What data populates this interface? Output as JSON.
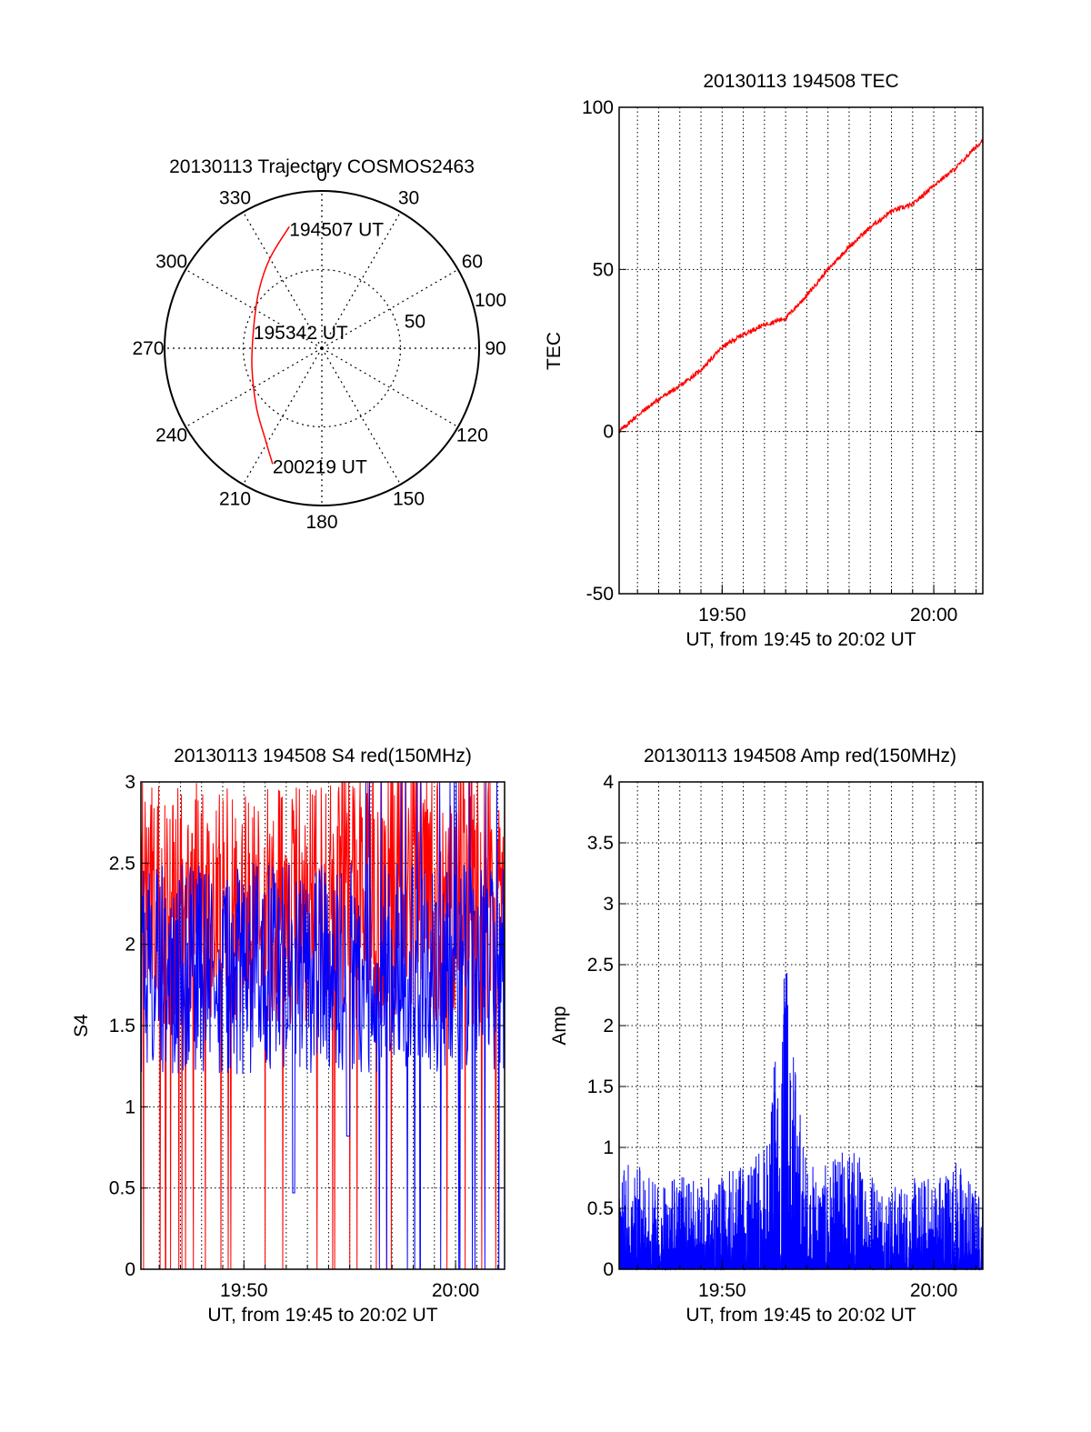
{
  "colors": {
    "background": "#ffffff",
    "axis": "#000000",
    "grid": "#000000",
    "red_series": "#ff0000",
    "blue_series": "#0000ff"
  },
  "chart_data": [
    {
      "type": "polar",
      "title": "20130113 Trajectory COSMOS2463",
      "angle_ticks": [
        "0",
        "30",
        "60",
        "90",
        "120",
        "150",
        "180",
        "210",
        "240",
        "270",
        "300",
        "330"
      ],
      "angle_tick_values": [
        0,
        30,
        60,
        90,
        120,
        150,
        180,
        210,
        240,
        270,
        300,
        330
      ],
      "radial_ticks": [
        "50",
        "100"
      ],
      "radial_tick_values": [
        50,
        100
      ],
      "radial_range": [
        0,
        100
      ],
      "radial_variable": "elevation",
      "grid": true,
      "series": [
        {
          "color": "#ff0000",
          "points": [
            {
              "azimuth": 345,
              "elevation": 10
            },
            {
              "azimuth": 330,
              "elevation": 24
            },
            {
              "azimuth": 312,
              "elevation": 36
            },
            {
              "azimuth": 285,
              "elevation": 45
            },
            {
              "azimuth": 255,
              "elevation": 44
            },
            {
              "azimuth": 228,
              "elevation": 34
            },
            {
              "azimuth": 212,
              "elevation": 22
            },
            {
              "azimuth": 203,
              "elevation": 10
            }
          ]
        }
      ],
      "annotations": [
        {
          "text": "194507 UT",
          "azimuth": 345,
          "elevation": 10
        },
        {
          "text": "195342 UT",
          "azimuth": 285,
          "elevation": 45
        },
        {
          "text": "200219 UT",
          "azimuth": 203,
          "elevation": 10
        }
      ]
    },
    {
      "type": "line",
      "title": "20130113 194508 TEC",
      "xlabel": "UT, from 19:45 to 20:02 UT",
      "ylabel": "TEC",
      "xlim": [
        "19:45:08",
        "20:02:19"
      ],
      "ylim": [
        -50,
        100
      ],
      "xticks": [
        "19:50",
        "20:00"
      ],
      "yticks": [
        "-50",
        "0",
        "50",
        "100"
      ],
      "grid": true,
      "series": [
        {
          "color": "#ff0000",
          "x": [
            "19:45:08",
            "19:46:00",
            "19:47:00",
            "19:48:00",
            "19:49:00",
            "19:50:00",
            "19:51:00",
            "19:52:00",
            "19:53:00",
            "19:54:00",
            "19:55:00",
            "19:56:00",
            "19:57:00",
            "19:58:00",
            "19:59:00",
            "20:00:00",
            "20:01:00",
            "20:02:19"
          ],
          "y": [
            0,
            5,
            10,
            14,
            19,
            26,
            30,
            33,
            35,
            42,
            50,
            57,
            63,
            68,
            70,
            76,
            81,
            90
          ]
        }
      ]
    },
    {
      "type": "line",
      "title": "20130113 194508 S4 red(150MHz)",
      "xlabel": "UT, from 19:45 to 20:02 UT",
      "ylabel": "S4",
      "xlim": [
        "19:45:08",
        "20:02:19"
      ],
      "ylim": [
        0,
        3
      ],
      "xticks": [
        "19:50",
        "20:00"
      ],
      "yticks": [
        "0",
        "0.5",
        "1",
        "1.5",
        "2",
        "2.5",
        "3"
      ],
      "grid": true,
      "series": [
        {
          "color": "#ff0000",
          "description_values": {
            "baseline_range": [
              1.5,
              3
            ],
            "frequent_drops_to": 0
          }
        },
        {
          "color": "#0000ff",
          "description_values": {
            "baseline_range": [
              1.2,
              2.5
            ],
            "min_dips": [
              0.47,
              0.82
            ]
          }
        }
      ]
    },
    {
      "type": "line",
      "title": "20130113 194508 Amp red(150MHz)",
      "xlabel": "UT, from 19:45 to 20:02 UT",
      "ylabel": "Amp",
      "xlim": [
        "19:45:08",
        "20:02:19"
      ],
      "ylim": [
        0,
        4
      ],
      "xticks": [
        "19:50",
        "20:00"
      ],
      "yticks": [
        "0",
        "0.5",
        "1",
        "1.5",
        "2",
        "2.5",
        "3",
        "3.5",
        "4"
      ],
      "grid": true,
      "series": [
        {
          "color": "#0000ff",
          "x": [
            "19:45:08",
            "19:47:00",
            "19:49:00",
            "19:51:00",
            "19:52:00",
            "19:53:00",
            "19:54:00",
            "19:55:00",
            "19:56:00",
            "19:58:00",
            "20:00:00",
            "20:01:00",
            "20:02:19"
          ],
          "y": [
            0.96,
            0.8,
            0.75,
            0.85,
            1.05,
            2.47,
            0.9,
            0.85,
            1.07,
            0.7,
            0.8,
            0.96,
            0.6
          ]
        }
      ]
    }
  ]
}
